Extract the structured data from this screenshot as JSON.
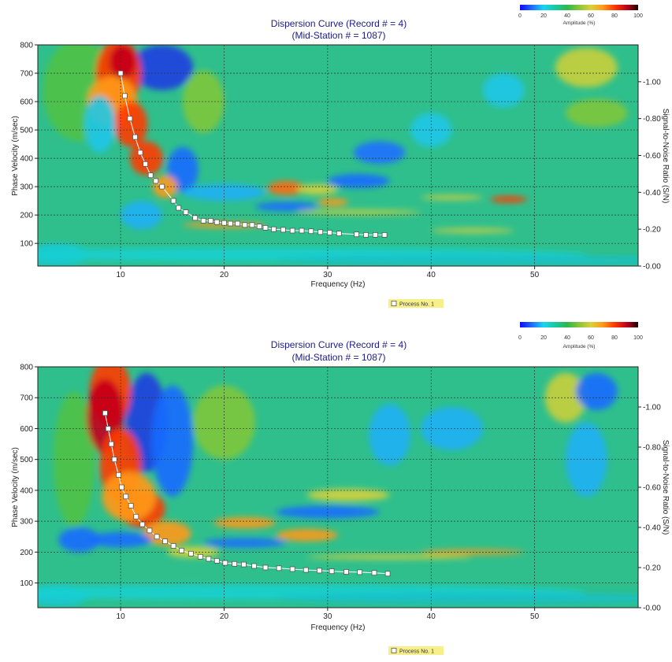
{
  "palette": {
    "title": "#1a1a8c",
    "grid": "#333333",
    "marker_fill": "#ffffff",
    "marker_stroke": "#555555",
    "legend_bg": "#f6ef8a",
    "colorbar": [
      "#0b0bff",
      "#1f6bff",
      "#16d6f0",
      "#18c9a0",
      "#2db84a",
      "#8bc43a",
      "#d8d23a",
      "#ff9a1a",
      "#ff3a00",
      "#c4001c",
      "#1a0000"
    ]
  },
  "colorbar": {
    "ticks": [
      "0",
      "20",
      "40",
      "60",
      "80",
      "100"
    ],
    "label": "Amplitude (%)"
  },
  "chart_data": [
    {
      "type": "heatmap",
      "title": "Dispersion Curve (Record # = 4)",
      "subtitle": "(Mid-Station # = 1087)",
      "xlabel": "Frequency (Hz)",
      "ylabel": "Phase Velocity (m/sec)",
      "y2label": "Signal-to-Noise Ratio (S/N)",
      "xlim": [
        2,
        60
      ],
      "ylim": [
        20,
        800
      ],
      "y2lim": [
        0,
        1.2
      ],
      "xticks": [
        10,
        20,
        30,
        40,
        50
      ],
      "yticks": [
        100,
        200,
        300,
        400,
        500,
        600,
        700,
        800
      ],
      "y2ticks": [
        "0.00",
        "0.20",
        "0.40",
        "0.60",
        "0.80",
        "1.00"
      ],
      "grid": true,
      "legend": "Process No. 1",
      "series": [
        {
          "name": "Process No. 1",
          "x": [
            10.0,
            10.4,
            10.9,
            11.4,
            11.9,
            12.4,
            12.9,
            13.4,
            14.0,
            15.1,
            15.6,
            16.3,
            17.2,
            18.0,
            18.7,
            19.3,
            20.0,
            20.6,
            21.3,
            22.0,
            22.7,
            23.4,
            24.0,
            24.8,
            25.7,
            26.6,
            27.5,
            28.4,
            29.3,
            30.2,
            31.1,
            32.8,
            33.7,
            34.6,
            35.5
          ],
          "y": [
            700,
            620,
            540,
            475,
            420,
            380,
            340,
            320,
            300,
            250,
            225,
            210,
            190,
            180,
            180,
            175,
            172,
            170,
            170,
            165,
            165,
            160,
            155,
            150,
            148,
            145,
            145,
            143,
            140,
            138,
            135,
            132,
            130,
            130,
            130
          ]
        }
      ]
    },
    {
      "type": "heatmap",
      "title": "Dispersion Curve (Record # = 4)",
      "subtitle": "(Mid-Station # = 1087)",
      "xlabel": "Frequency (Hz)",
      "ylabel": "Phase Velocity (m/sec)",
      "y2label": "Signal-to-Noise Ratio (S/N)",
      "xlim": [
        2,
        60
      ],
      "ylim": [
        20,
        800
      ],
      "y2lim": [
        0,
        1.2
      ],
      "xticks": [
        10,
        20,
        30,
        40,
        50
      ],
      "yticks": [
        100,
        200,
        300,
        400,
        500,
        600,
        700,
        800
      ],
      "y2ticks": [
        "0.00",
        "0.20",
        "0.40",
        "0.60",
        "0.80",
        "1.00"
      ],
      "grid": true,
      "legend": "Process No. 1",
      "series": [
        {
          "name": "Process No. 1",
          "x": [
            8.5,
            8.8,
            9.1,
            9.4,
            9.8,
            10.1,
            10.5,
            11.0,
            11.5,
            12.1,
            12.8,
            13.5,
            14.3,
            15.1,
            15.9,
            16.8,
            17.7,
            18.5,
            19.3,
            20.1,
            21.0,
            21.9,
            22.9,
            24.0,
            25.3,
            26.6,
            27.9,
            29.2,
            30.4,
            31.8,
            33.1,
            34.5,
            35.8
          ],
          "y": [
            650,
            600,
            550,
            500,
            450,
            410,
            380,
            350,
            315,
            290,
            270,
            250,
            235,
            220,
            205,
            195,
            185,
            178,
            172,
            165,
            162,
            160,
            155,
            150,
            148,
            145,
            142,
            140,
            138,
            136,
            135,
            133,
            130
          ]
        }
      ]
    }
  ]
}
